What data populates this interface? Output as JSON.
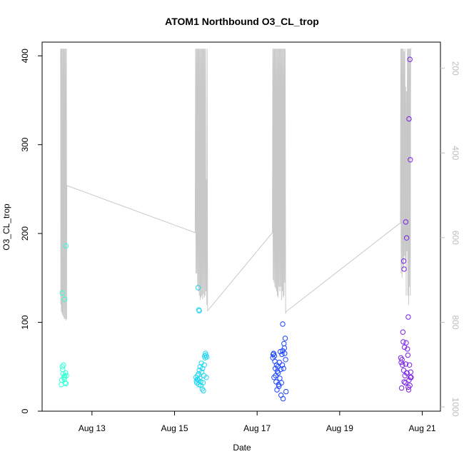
{
  "chart_data": {
    "type": "scatter",
    "title": "ATOM1 Northbound O3_CL_trop",
    "xlabel": "Date",
    "ylabel": "O3_CL_trop",
    "xlim": [
      12.0,
      21.25
    ],
    "ylim": [
      0,
      405
    ],
    "x_ticks": [
      13,
      15,
      17,
      19,
      21
    ],
    "x_tick_labels": [
      "Aug 13",
      "Aug 15",
      "Aug 17",
      "Aug 19",
      "Aug 21"
    ],
    "y_ticks": [
      0,
      100,
      200,
      300,
      400
    ],
    "y_tick_labels": [
      "0",
      "100",
      "200",
      "300",
      "400"
    ],
    "y2_label": "",
    "y2_lim": [
      1010,
      160
    ],
    "y2_ticks": [
      200,
      400,
      600,
      800,
      1000
    ],
    "y2_tick_labels": [
      "200",
      "400",
      "600",
      "800",
      "1000"
    ],
    "grid": false,
    "series": [
      {
        "color": "#33ffd6",
        "x": [
          12.26,
          12.27,
          12.28,
          12.29,
          12.3,
          12.31,
          12.32,
          12.33,
          12.34,
          12.35,
          12.36,
          12.37,
          12.38,
          12.28,
          12.34,
          12.37
        ],
        "y": [
          30,
          35,
          50,
          47,
          42,
          52,
          38,
          36,
          40,
          32,
          43,
          31,
          40,
          133,
          126,
          186
        ]
      },
      {
        "color": "#22d6f2",
        "x": [
          15.52,
          15.53,
          15.54,
          15.55,
          15.56,
          15.57,
          15.58,
          15.59,
          15.6,
          15.61,
          15.62,
          15.63,
          15.64,
          15.65,
          15.66,
          15.67,
          15.68,
          15.69,
          15.7,
          15.71,
          15.72,
          15.73,
          15.74,
          15.75,
          15.76,
          15.77,
          15.78,
          15.57,
          15.59,
          15.6
        ],
        "y": [
          38,
          34,
          32,
          36,
          40,
          35,
          42,
          30,
          46,
          37,
          50,
          33,
          29,
          54,
          44,
          25,
          48,
          32,
          23,
          40,
          52,
          62,
          60,
          65,
          63,
          38,
          61,
          139,
          114,
          113
        ]
      },
      {
        "color": "#1a44ff",
        "x": [
          17.38,
          17.39,
          17.4,
          17.41,
          17.42,
          17.43,
          17.44,
          17.45,
          17.46,
          17.47,
          17.48,
          17.49,
          17.5,
          17.51,
          17.52,
          17.53,
          17.54,
          17.55,
          17.56,
          17.57,
          17.58,
          17.59,
          17.6,
          17.61,
          17.62,
          17.63,
          17.64,
          17.65,
          17.66,
          17.67,
          17.68,
          17.69,
          17.7,
          17.62
        ],
        "y": [
          60,
          64,
          65,
          38,
          62,
          56,
          48,
          40,
          33,
          52,
          24,
          45,
          50,
          43,
          30,
          28,
          55,
          37,
          67,
          47,
          18,
          32,
          64,
          52,
          68,
          14,
          48,
          76,
          71,
          65,
          82,
          58,
          22,
          98
        ]
      },
      {
        "color": "#7a1fe6",
        "x": [
          20.48,
          20.49,
          20.5,
          20.51,
          20.52,
          20.53,
          20.54,
          20.55,
          20.56,
          20.57,
          20.58,
          20.59,
          20.6,
          20.61,
          20.62,
          20.63,
          20.64,
          20.65,
          20.66,
          20.67,
          20.68,
          20.69,
          20.7,
          20.71,
          20.72,
          20.73,
          20.55,
          20.56,
          20.6,
          20.62,
          20.66,
          20.68,
          20.7,
          20.71
        ],
        "y": [
          60,
          55,
          26,
          58,
          52,
          89,
          78,
          46,
          33,
          72,
          40,
          32,
          53,
          77,
          43,
          43,
          70,
          63,
          27,
          24,
          35,
          52,
          29,
          38,
          44,
          38,
          169,
          160,
          213,
          195,
          106,
          329,
          396,
          283
        ]
      }
    ],
    "line_series": {
      "color": "#c8c8c8",
      "x": [
        12.24,
        12.245,
        12.25,
        12.26,
        12.27,
        12.275,
        12.28,
        12.29,
        12.3,
        12.31,
        12.32,
        12.33,
        12.34,
        12.35,
        12.36,
        12.37,
        12.38,
        12.385,
        12.39,
        15.5,
        15.51,
        15.52,
        15.53,
        15.54,
        15.55,
        15.56,
        15.57,
        15.58,
        15.59,
        15.6,
        15.61,
        15.62,
        15.63,
        15.64,
        15.65,
        15.66,
        15.67,
        15.68,
        15.69,
        15.7,
        15.71,
        15.72,
        15.73,
        15.74,
        15.75,
        15.76,
        15.77,
        15.78,
        15.79,
        15.8,
        17.37,
        17.38,
        17.39,
        17.4,
        17.41,
        17.42,
        17.43,
        17.44,
        17.45,
        17.46,
        17.47,
        17.48,
        17.49,
        17.5,
        17.51,
        17.52,
        17.53,
        17.54,
        17.55,
        17.56,
        17.57,
        17.58,
        17.59,
        17.6,
        17.61,
        17.62,
        17.63,
        17.64,
        17.65,
        17.66,
        17.67,
        17.68,
        17.69,
        17.7,
        20.47,
        20.48,
        20.49,
        20.5,
        20.51,
        20.52,
        20.53,
        20.54,
        20.55,
        20.56,
        20.57,
        20.58,
        20.59,
        20.6,
        20.61,
        20.62,
        20.63,
        20.64,
        20.65,
        20.66,
        20.67,
        20.68,
        20.69,
        20.7,
        20.71,
        20.72,
        20.73,
        20.74
      ],
      "y": [
        408,
        120,
        408,
        112,
        408,
        110,
        408,
        108,
        408,
        106,
        408,
        104,
        408,
        104,
        408,
        102,
        408,
        104,
        254,
        201,
        408,
        155,
        408,
        155,
        408,
        140,
        408,
        135,
        408,
        130,
        408,
        125,
        408,
        128,
        408,
        130,
        408,
        126,
        408,
        132,
        408,
        128,
        408,
        130,
        408,
        135,
        261,
        120,
        408,
        113,
        201,
        408,
        148,
        408,
        145,
        408,
        140,
        408,
        138,
        408,
        135,
        408,
        130,
        408,
        128,
        408,
        140,
        408,
        135,
        408,
        140,
        408,
        125,
        408,
        135,
        408,
        128,
        408,
        130,
        408,
        145,
        408,
        110,
        112,
        212,
        408,
        155,
        408,
        150,
        408,
        165,
        408,
        160,
        405,
        175,
        408,
        170,
        365,
        130,
        360,
        180,
        408,
        130,
        408,
        120,
        408,
        140,
        408,
        130,
        408,
        408,
        408
      ]
    }
  }
}
